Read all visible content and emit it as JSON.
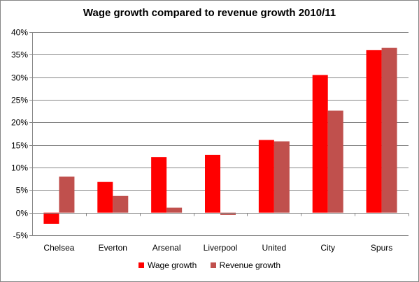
{
  "chart_data": {
    "type": "bar",
    "title": "Wage growth compared to revenue growth 2010/11",
    "xlabel": "",
    "ylabel": "",
    "categories": [
      "Chelsea",
      "Everton",
      "Arsenal",
      "Liverpool",
      "United",
      "City",
      "Spurs"
    ],
    "series": [
      {
        "name": "Wage growth",
        "color": "#ff0000",
        "values": [
          -2.5,
          6.8,
          12.3,
          12.8,
          16.1,
          30.5,
          36.0
        ]
      },
      {
        "name": "Revenue growth",
        "color": "#c0504d",
        "values": [
          8.0,
          3.7,
          1.1,
          -0.5,
          15.8,
          22.6,
          36.5
        ]
      }
    ],
    "ylim": [
      -5,
      40
    ],
    "yticks": [
      -5,
      0,
      5,
      10,
      15,
      20,
      25,
      30,
      35,
      40
    ],
    "ytick_format": "percent",
    "grid": true,
    "legend_position": "bottom"
  }
}
